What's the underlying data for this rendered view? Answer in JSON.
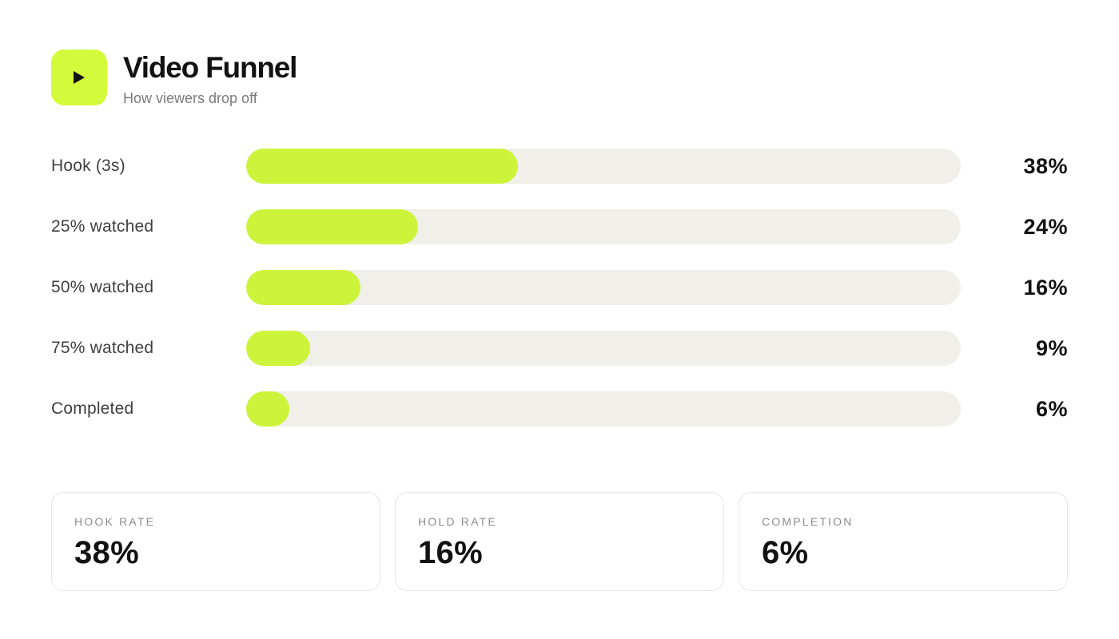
{
  "header": {
    "title": "Video Funnel",
    "subtitle": "How viewers drop off",
    "icon": "play-icon"
  },
  "colors": {
    "accent": "#d4fb3b",
    "bar_fill": "#cdf43b",
    "track": "#f0efea"
  },
  "chart_data": {
    "type": "bar",
    "orientation": "horizontal",
    "categories": [
      "Hook (3s)",
      "25% watched",
      "50% watched",
      "75% watched",
      "Completed"
    ],
    "values": [
      38,
      24,
      16,
      9,
      6
    ],
    "value_labels": [
      "38%",
      "24%",
      "16%",
      "9%",
      "6%"
    ],
    "xlim": [
      0,
      100
    ],
    "grid": false,
    "legend": "none"
  },
  "stats": [
    {
      "label": "HOOK RATE",
      "value": "38%"
    },
    {
      "label": "HOLD RATE",
      "value": "16%"
    },
    {
      "label": "COMPLETION",
      "value": "6%"
    }
  ]
}
